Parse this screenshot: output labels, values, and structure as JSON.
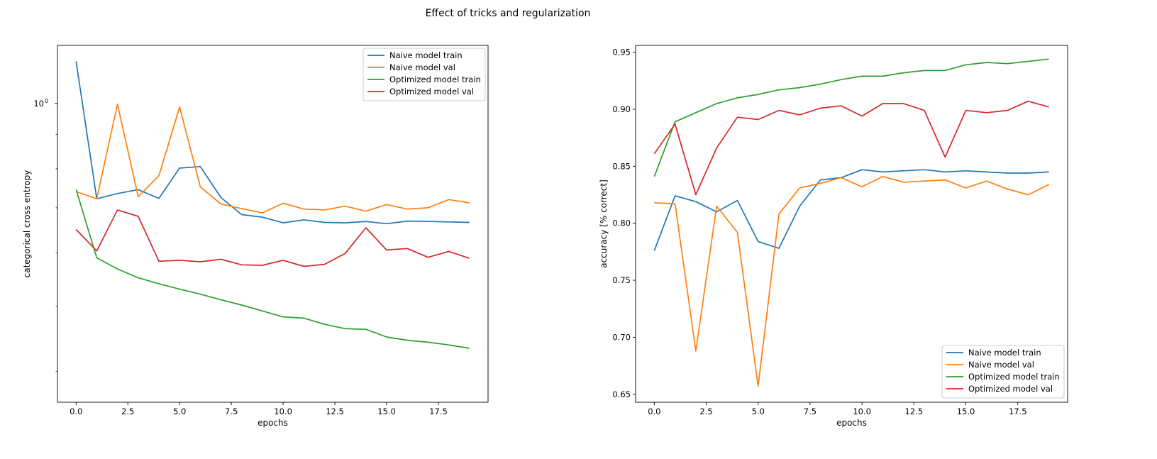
{
  "figure": {
    "title": "Effect of tricks and regularization"
  },
  "chart_data": [
    {
      "type": "line",
      "xlabel": "epochs",
      "ylabel": "categorical cross entropy",
      "yscale": "log",
      "xlim": [
        -0.9,
        19.9
      ],
      "ylim": [
        0.36,
        1.22
      ],
      "xticks": [
        0,
        2.5,
        5,
        7.5,
        10,
        12.5,
        15,
        17.5
      ],
      "xtick_labels": [
        "0.0",
        "2.5",
        "5.0",
        "7.5",
        "10.0",
        "12.5",
        "15.0",
        "17.5"
      ],
      "yticks": [
        1.0
      ],
      "ytick_labels": [
        "10"
      ],
      "ytick_exponents": [
        "0"
      ],
      "grid": false,
      "legend": "top-right",
      "x": [
        0,
        1,
        2,
        3,
        4,
        5,
        6,
        7,
        8,
        9,
        10,
        11,
        12,
        13,
        14,
        15,
        16,
        17,
        18,
        19
      ],
      "series": [
        {
          "name": "Naive model train",
          "color": "#1f77b4",
          "values": [
            1.155,
            0.722,
            0.735,
            0.745,
            0.723,
            0.802,
            0.806,
            0.725,
            0.684,
            0.678,
            0.665,
            0.672,
            0.666,
            0.665,
            0.668,
            0.663,
            0.669,
            0.668,
            0.667,
            0.666
          ]
        },
        {
          "name": "Naive model val",
          "color": "#ff7f0e",
          "values": [
            0.74,
            0.722,
            0.998,
            0.727,
            0.781,
            0.988,
            0.752,
            0.709,
            0.698,
            0.688,
            0.711,
            0.697,
            0.695,
            0.704,
            0.692,
            0.708,
            0.697,
            0.7,
            0.72,
            0.712
          ]
        },
        {
          "name": "Optimized model train",
          "color": "#2ca02c",
          "values": [
            0.745,
            0.59,
            0.568,
            0.551,
            0.54,
            0.53,
            0.521,
            0.511,
            0.502,
            0.492,
            0.482,
            0.48,
            0.47,
            0.463,
            0.462,
            0.45,
            0.445,
            0.442,
            0.438,
            0.433
          ]
        },
        {
          "name": "Optimized model val",
          "color": "#d62728",
          "values": [
            0.65,
            0.604,
            0.695,
            0.68,
            0.583,
            0.585,
            0.582,
            0.587,
            0.576,
            0.575,
            0.585,
            0.573,
            0.577,
            0.599,
            0.654,
            0.606,
            0.609,
            0.591,
            0.603,
            0.589
          ]
        }
      ]
    },
    {
      "type": "line",
      "xlabel": "epochs",
      "ylabel": "accuracy [% correct]",
      "yscale": "linear",
      "xlim": [
        -0.9,
        19.9
      ],
      "ylim": [
        0.643,
        0.956
      ],
      "xticks": [
        0,
        2.5,
        5,
        7.5,
        10,
        12.5,
        15,
        17.5
      ],
      "xtick_labels": [
        "0.0",
        "2.5",
        "5.0",
        "7.5",
        "10.0",
        "12.5",
        "15.0",
        "17.5"
      ],
      "yticks": [
        0.65,
        0.7,
        0.75,
        0.8,
        0.85,
        0.9,
        0.95
      ],
      "ytick_labels": [
        "0.65",
        "0.70",
        "0.75",
        "0.80",
        "0.85",
        "0.90",
        "0.95"
      ],
      "grid": false,
      "legend": "bottom-right",
      "x": [
        0,
        1,
        2,
        3,
        4,
        5,
        6,
        7,
        8,
        9,
        10,
        11,
        12,
        13,
        14,
        15,
        16,
        17,
        18,
        19
      ],
      "series": [
        {
          "name": "Naive model train",
          "color": "#1f77b4",
          "values": [
            0.776,
            0.824,
            0.819,
            0.81,
            0.82,
            0.784,
            0.778,
            0.815,
            0.838,
            0.84,
            0.847,
            0.845,
            0.846,
            0.847,
            0.845,
            0.846,
            0.845,
            0.844,
            0.844,
            0.845
          ]
        },
        {
          "name": "Naive model val",
          "color": "#ff7f0e",
          "values": [
            0.818,
            0.817,
            0.688,
            0.815,
            0.792,
            0.657,
            0.808,
            0.831,
            0.835,
            0.84,
            0.832,
            0.841,
            0.836,
            0.837,
            0.838,
            0.831,
            0.837,
            0.83,
            0.825,
            0.834
          ]
        },
        {
          "name": "Optimized model train",
          "color": "#2ca02c",
          "values": [
            0.841,
            0.889,
            0.897,
            0.905,
            0.91,
            0.913,
            0.917,
            0.919,
            0.922,
            0.926,
            0.929,
            0.929,
            0.932,
            0.934,
            0.934,
            0.939,
            0.941,
            0.94,
            0.942,
            0.944
          ]
        },
        {
          "name": "Optimized model val",
          "color": "#d62728",
          "values": [
            0.861,
            0.887,
            0.825,
            0.866,
            0.893,
            0.891,
            0.899,
            0.895,
            0.901,
            0.903,
            0.894,
            0.905,
            0.905,
            0.899,
            0.858,
            0.899,
            0.897,
            0.899,
            0.907,
            0.902
          ]
        }
      ]
    }
  ]
}
